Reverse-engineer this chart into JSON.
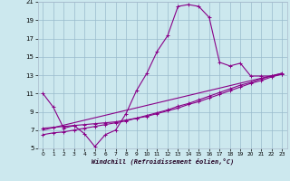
{
  "xlabel": "Windchill (Refroidissement éolien,°C)",
  "bg_color": "#cce8ee",
  "line_color": "#880088",
  "grid_color": "#99bbcc",
  "xlim": [
    -0.5,
    23.5
  ],
  "ylim": [
    5,
    21
  ],
  "xticks": [
    0,
    1,
    2,
    3,
    4,
    5,
    6,
    7,
    8,
    9,
    10,
    11,
    12,
    13,
    14,
    15,
    16,
    17,
    18,
    19,
    20,
    21,
    22,
    23
  ],
  "yticks": [
    5,
    7,
    9,
    11,
    13,
    15,
    17,
    19,
    21
  ],
  "line1_x": [
    0,
    1,
    2,
    3,
    4,
    5,
    6,
    7,
    8,
    9,
    10,
    11,
    12,
    13,
    14,
    15,
    16,
    17,
    18,
    19,
    20,
    21,
    22,
    23
  ],
  "line1_y": [
    11.0,
    9.5,
    7.2,
    7.5,
    6.6,
    5.2,
    6.5,
    7.0,
    8.8,
    11.3,
    13.2,
    15.6,
    17.3,
    20.5,
    20.7,
    20.5,
    19.3,
    14.4,
    14.0,
    14.3,
    12.9,
    12.9,
    12.9,
    13.1
  ],
  "line2_x": [
    0,
    1,
    2,
    3,
    4,
    5,
    6,
    7,
    8,
    9,
    10,
    11,
    12,
    13,
    14,
    15,
    16,
    17,
    18,
    19,
    20,
    21,
    22,
    23
  ],
  "line2_y": [
    7.2,
    7.3,
    7.4,
    7.5,
    7.6,
    7.7,
    7.8,
    7.9,
    8.1,
    8.3,
    8.5,
    8.8,
    9.1,
    9.4,
    9.8,
    10.1,
    10.5,
    10.9,
    11.3,
    11.7,
    12.1,
    12.4,
    12.8,
    13.1
  ],
  "line3_x": [
    0,
    1,
    2,
    3,
    4,
    5,
    6,
    7,
    8,
    9,
    10,
    11,
    12,
    13,
    14,
    15,
    16,
    17,
    18,
    19,
    20,
    21,
    22,
    23
  ],
  "line3_y": [
    6.5,
    6.7,
    6.8,
    7.0,
    7.2,
    7.4,
    7.6,
    7.8,
    8.0,
    8.3,
    8.6,
    8.9,
    9.2,
    9.6,
    9.9,
    10.3,
    10.7,
    11.1,
    11.5,
    11.9,
    12.2,
    12.6,
    12.9,
    13.2
  ],
  "line4_x": [
    0,
    23
  ],
  "line4_y": [
    7.0,
    13.2
  ]
}
